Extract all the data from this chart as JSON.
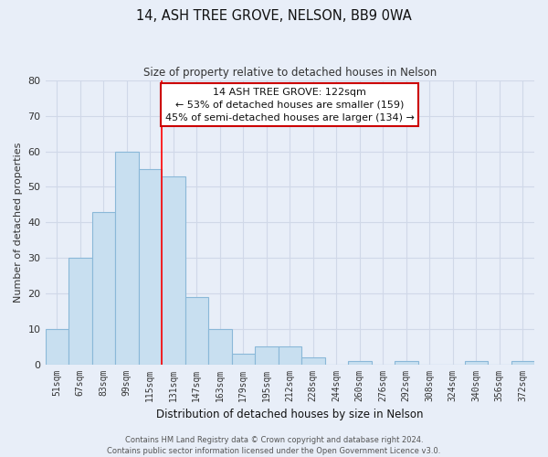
{
  "title": "14, ASH TREE GROVE, NELSON, BB9 0WA",
  "subtitle": "Size of property relative to detached houses in Nelson",
  "xlabel": "Distribution of detached houses by size in Nelson",
  "ylabel": "Number of detached properties",
  "bar_color": "#c8dff0",
  "bar_edge_color": "#8ab8d8",
  "background_color": "#e8eef8",
  "grid_color": "#d0d8e8",
  "bins": [
    "51sqm",
    "67sqm",
    "83sqm",
    "99sqm",
    "115sqm",
    "131sqm",
    "147sqm",
    "163sqm",
    "179sqm",
    "195sqm",
    "212sqm",
    "228sqm",
    "244sqm",
    "260sqm",
    "276sqm",
    "292sqm",
    "308sqm",
    "324sqm",
    "340sqm",
    "356sqm",
    "372sqm"
  ],
  "values": [
    10,
    30,
    43,
    60,
    55,
    53,
    19,
    10,
    3,
    5,
    5,
    2,
    0,
    1,
    0,
    1,
    0,
    0,
    1,
    0,
    1
  ],
  "ylim": [
    0,
    80
  ],
  "yticks": [
    0,
    10,
    20,
    30,
    40,
    50,
    60,
    70,
    80
  ],
  "red_line_x": 4.5,
  "annotation_title": "14 ASH TREE GROVE: 122sqm",
  "annotation_line1": "← 53% of detached houses are smaller (159)",
  "annotation_line2": "45% of semi-detached houses are larger (134) →",
  "annotation_box_color": "#ffffff",
  "annotation_box_edge_color": "#cc0000",
  "footer_line1": "Contains HM Land Registry data © Crown copyright and database right 2024.",
  "footer_line2": "Contains public sector information licensed under the Open Government Licence v3.0."
}
